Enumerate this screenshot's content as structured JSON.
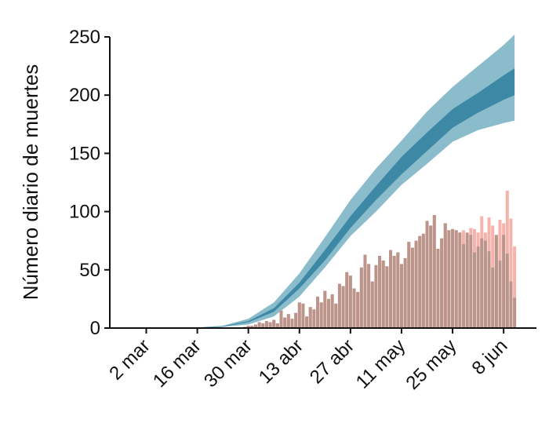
{
  "chart_data": {
    "type": "band-bar",
    "ylabel": "Número diario de muertes",
    "xlim": [
      -10,
      107
    ],
    "ylim": [
      0,
      250
    ],
    "xticks": [
      {
        "value": 0,
        "label": "2 mar"
      },
      {
        "value": 14,
        "label": "16 mar"
      },
      {
        "value": 28,
        "label": "30 mar"
      },
      {
        "value": 42,
        "label": "13 abr"
      },
      {
        "value": 56,
        "label": "27 abr"
      },
      {
        "value": 70,
        "label": "11 may"
      },
      {
        "value": 84,
        "label": "25 may"
      },
      {
        "value": 98,
        "label": "8 jun"
      }
    ],
    "yticks": [
      0,
      50,
      100,
      150,
      200,
      250
    ],
    "bands": [
      {
        "color": "#8bbccb",
        "x": [
          14,
          21,
          28,
          35,
          42,
          49,
          56,
          63,
          70,
          77,
          84,
          91,
          98,
          101
        ],
        "upper": [
          0.5,
          2,
          8,
          22,
          47,
          78,
          110,
          137,
          161,
          186,
          207,
          225,
          243,
          252
        ],
        "lower": [
          0.2,
          1,
          3,
          10,
          27,
          52,
          79,
          100,
          123,
          141,
          160,
          170,
          176,
          178
        ]
      },
      {
        "color": "#3d88a5",
        "x": [
          14,
          21,
          28,
          35,
          42,
          49,
          56,
          63,
          70,
          77,
          84,
          91,
          98,
          101
        ],
        "upper": [
          0.4,
          1.6,
          6,
          17,
          39,
          67,
          96,
          122,
          147,
          168,
          188,
          202,
          217,
          223
        ],
        "lower": [
          0.3,
          1.2,
          5,
          14,
          34,
          58,
          86,
          110,
          132,
          152,
          172,
          185,
          196,
          200
        ]
      }
    ],
    "bars": [
      {
        "color": "#f6b3ab",
        "x": [
          27,
          28,
          29,
          30,
          31,
          32,
          33,
          34,
          35,
          36,
          37,
          38,
          39,
          40,
          41,
          42,
          43,
          44,
          45,
          46,
          47,
          48,
          49,
          50,
          51,
          52,
          53,
          54,
          55,
          56,
          57,
          58,
          59,
          60,
          61,
          62,
          63,
          64,
          65,
          66,
          67,
          68,
          69,
          70,
          71,
          72,
          73,
          74,
          75,
          76,
          77,
          78,
          79,
          80,
          81,
          82,
          83,
          84,
          85,
          86,
          87,
          88,
          89,
          90,
          91,
          92,
          93,
          94,
          95,
          96,
          97,
          98,
          99,
          100,
          101
        ],
        "values": [
          1,
          2,
          2,
          3,
          5,
          4,
          6,
          5,
          7,
          4,
          15,
          9,
          12,
          8,
          13,
          22,
          21,
          10,
          18,
          16,
          27,
          22,
          32,
          25,
          29,
          21,
          38,
          36,
          48,
          45,
          34,
          31,
          52,
          63,
          55,
          40,
          54,
          62,
          58,
          53,
          67,
          62,
          65,
          55,
          60,
          74,
          69,
          75,
          79,
          81,
          92,
          88,
          97,
          68,
          77,
          90,
          84,
          85,
          84,
          82,
          84,
          76,
          86,
          85,
          82,
          96,
          82,
          95,
          88,
          78,
          93,
          90,
          118,
          94,
          70
        ]
      },
      {
        "color": "#bb958b",
        "x": [
          27,
          28,
          29,
          30,
          31,
          32,
          33,
          34,
          35,
          36,
          37,
          38,
          39,
          40,
          41,
          42,
          43,
          44,
          45,
          46,
          47,
          48,
          49,
          50,
          51,
          52,
          53,
          54,
          55,
          56,
          57,
          58,
          59,
          60,
          61,
          62,
          63,
          64,
          65,
          66,
          67,
          68,
          69,
          70,
          71,
          72,
          73,
          74,
          75,
          76,
          77,
          78,
          79,
          80,
          81,
          82,
          83,
          84,
          85,
          86,
          87,
          88,
          89,
          90,
          91,
          92,
          93,
          94,
          95,
          96,
          97,
          98,
          99,
          100,
          101
        ],
        "values": [
          1,
          2,
          2,
          3,
          5,
          4,
          6,
          5,
          7,
          4,
          15,
          9,
          12,
          8,
          13,
          22,
          21,
          10,
          18,
          16,
          27,
          22,
          32,
          25,
          29,
          21,
          38,
          36,
          48,
          45,
          34,
          31,
          52,
          63,
          55,
          40,
          54,
          62,
          58,
          53,
          67,
          62,
          65,
          55,
          60,
          74,
          69,
          75,
          79,
          81,
          92,
          88,
          97,
          68,
          77,
          90,
          84,
          85,
          84,
          82,
          72,
          82,
          80,
          65,
          70,
          77,
          75,
          66,
          52,
          80,
          58,
          80,
          64,
          40,
          26
        ]
      }
    ]
  }
}
